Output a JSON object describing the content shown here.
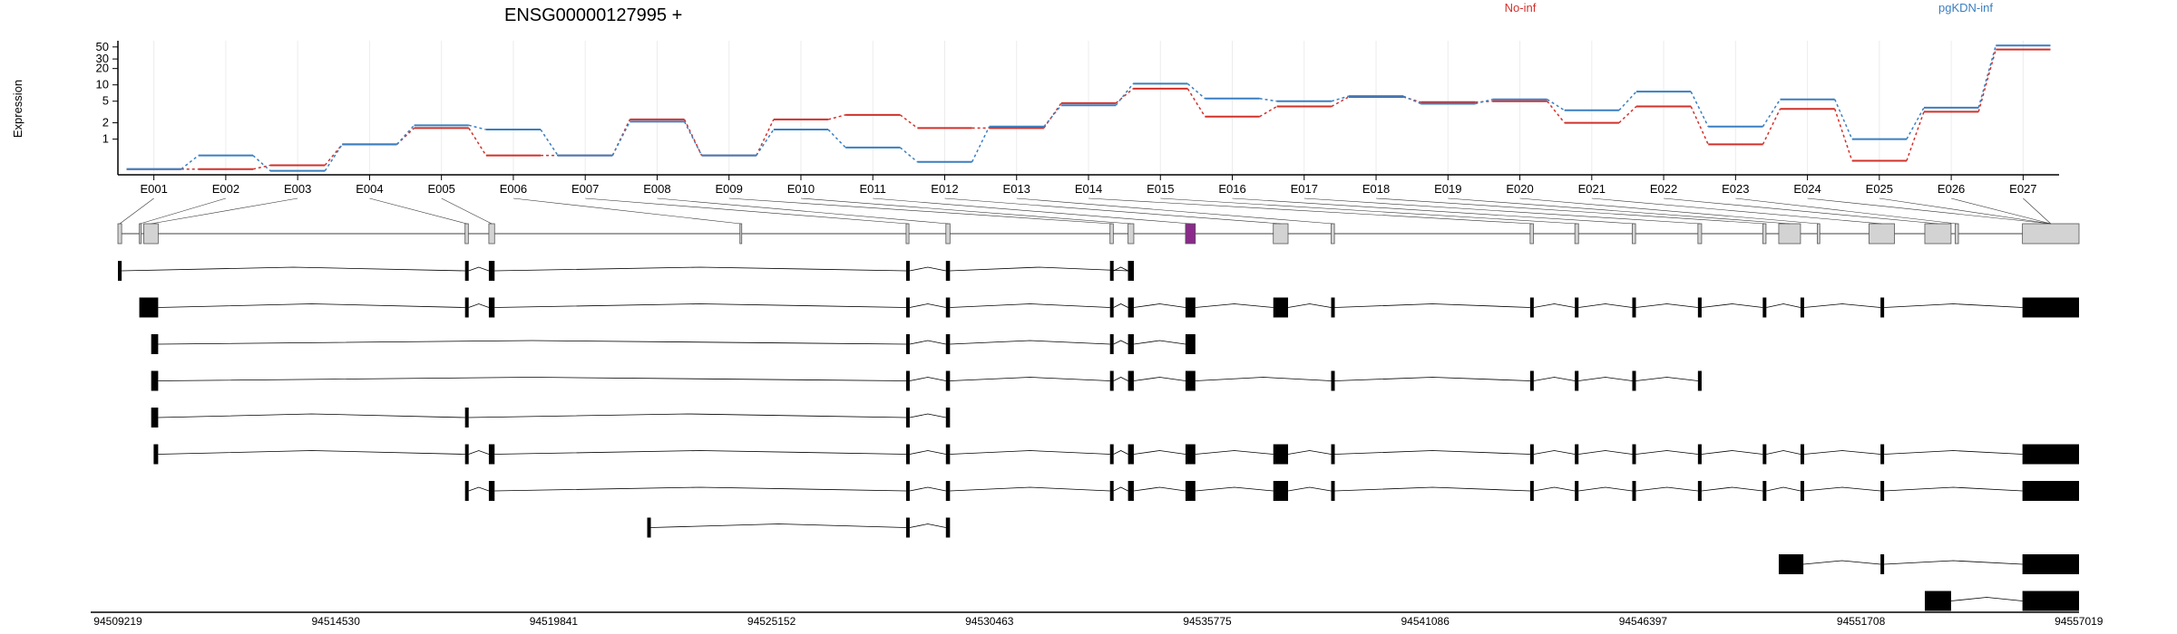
{
  "chart_data": {
    "type": "line",
    "title": "ENSG00000127995 +",
    "ylabel": "Expression",
    "y_scale": "log",
    "y_ticks": [
      "1",
      "2",
      "5",
      "10",
      "20",
      "30",
      "50"
    ],
    "y_tick_values": [
      1,
      2,
      5,
      10,
      20,
      30,
      50
    ],
    "ylim": [
      0.22,
      65
    ],
    "grid": true,
    "legend_placement": "top",
    "categories": [
      "E001",
      "E002",
      "E003",
      "E004",
      "E005",
      "E006",
      "E007",
      "E008",
      "E009",
      "E010",
      "E011",
      "E012",
      "E013",
      "E014",
      "E015",
      "E016",
      "E017",
      "E018",
      "E019",
      "E020",
      "E021",
      "E022",
      "E023",
      "E024",
      "E025",
      "E026",
      "E027"
    ],
    "series": [
      {
        "name": "No-inf",
        "color": "#d1312b",
        "values": [
          0.28,
          0.28,
          0.33,
          0.8,
          1.6,
          0.5,
          0.5,
          2.3,
          0.5,
          2.3,
          2.8,
          1.6,
          1.6,
          4.6,
          8.5,
          2.6,
          4.0,
          6.0,
          4.8,
          5.0,
          2.0,
          4.0,
          0.8,
          3.6,
          0.4,
          3.2,
          45
        ]
      },
      {
        "name": "pgKDN-inf",
        "color": "#3a7fc1",
        "values": [
          0.28,
          0.5,
          0.26,
          0.8,
          1.8,
          1.5,
          0.5,
          2.1,
          0.5,
          1.5,
          0.7,
          0.38,
          1.7,
          4.2,
          10.5,
          5.6,
          5.0,
          6.2,
          4.5,
          5.4,
          3.4,
          7.5,
          1.7,
          5.4,
          1.0,
          3.8,
          53
        ]
      }
    ],
    "exon_highlight": "E011",
    "genomic_coordinates": [
      "94509219",
      "94514530",
      "94519841",
      "94525152",
      "94530463",
      "94535775",
      "94541086",
      "94546397",
      "94551708",
      "94557019"
    ],
    "coordinate_range": [
      94509219,
      94557019
    ],
    "exons_genomic": [
      [
        94509219,
        94509310
      ],
      [
        94509740,
        94509780
      ],
      [
        94509850,
        94510200
      ],
      [
        94517680,
        94517760
      ],
      [
        94518260,
        94518400
      ],
      [
        94524380,
        94524420
      ],
      [
        94528430,
        94528500
      ],
      [
        94529400,
        94529500
      ],
      [
        94533400,
        94533480
      ],
      [
        94533840,
        94533980
      ],
      [
        94535240,
        94535480
      ],
      [
        94537380,
        94537740
      ],
      [
        94538790,
        94538870
      ],
      [
        94543640,
        94543720
      ],
      [
        94544730,
        94544820
      ],
      [
        94546130,
        94546210
      ],
      [
        94547730,
        94547820
      ],
      [
        94549310,
        94549390
      ],
      [
        94549700,
        94550230
      ],
      [
        94550640,
        94550700
      ],
      [
        94551900,
        94552520
      ],
      [
        94553260,
        94553900
      ],
      [
        94554000,
        94554080
      ],
      [
        94555640,
        94557019
      ]
    ],
    "transcripts": [
      [
        [
          94509219,
          94509310
        ],
        [
          94517680,
          94517760
        ],
        [
          94518260,
          94518400
        ],
        [
          94528430,
          94528500
        ],
        [
          94529400,
          94529500
        ],
        [
          94533840,
          94533980
        ],
        [
          94533400,
          94533480
        ],
        [
          94533840,
          94533980
        ]
      ],
      [
        [
          94509740,
          94510200
        ],
        [
          94517680,
          94517760
        ],
        [
          94518260,
          94518400
        ],
        [
          94528430,
          94528500
        ],
        [
          94529400,
          94529500
        ],
        [
          94533400,
          94533480
        ],
        [
          94533840,
          94533980
        ],
        [
          94535240,
          94535480
        ],
        [
          94537380,
          94537740
        ],
        [
          94538790,
          94538870
        ],
        [
          94543640,
          94543720
        ],
        [
          94544730,
          94544820
        ],
        [
          94546130,
          94546210
        ],
        [
          94547730,
          94547820
        ],
        [
          94549310,
          94549390
        ],
        [
          94550230,
          94550300
        ],
        [
          94552180,
          94552260
        ],
        [
          94555640,
          94557019
        ]
      ],
      [
        [
          94510030,
          94510200
        ],
        [
          94528430,
          94528500
        ],
        [
          94529400,
          94529500
        ],
        [
          94533400,
          94533480
        ],
        [
          94533840,
          94533980
        ],
        [
          94535240,
          94535480
        ]
      ],
      [
        [
          94510030,
          94510200
        ],
        [
          94528430,
          94528500
        ],
        [
          94529400,
          94529500
        ],
        [
          94533400,
          94533480
        ],
        [
          94533840,
          94533980
        ],
        [
          94535240,
          94535480
        ],
        [
          94538790,
          94538870
        ],
        [
          94543640,
          94543720
        ],
        [
          94544730,
          94544820
        ],
        [
          94546130,
          94546210
        ],
        [
          94547730,
          94547820
        ]
      ],
      [
        [
          94510030,
          94510200
        ],
        [
          94517680,
          94517760
        ],
        [
          94528430,
          94528500
        ],
        [
          94529400,
          94529500
        ]
      ],
      [
        [
          94510090,
          94510200
        ],
        [
          94517680,
          94517760
        ],
        [
          94518260,
          94518400
        ],
        [
          94528430,
          94528500
        ],
        [
          94529400,
          94529500
        ],
        [
          94533400,
          94533480
        ],
        [
          94533840,
          94533980
        ],
        [
          94535240,
          94535480
        ],
        [
          94537380,
          94537740
        ],
        [
          94538790,
          94538870
        ],
        [
          94543640,
          94543720
        ],
        [
          94544730,
          94544820
        ],
        [
          94546130,
          94546210
        ],
        [
          94547730,
          94547820
        ],
        [
          94549310,
          94549390
        ],
        [
          94550230,
          94550300
        ],
        [
          94552180,
          94552260
        ],
        [
          94555640,
          94557019
        ]
      ],
      [
        [
          94517680,
          94517760
        ],
        [
          94518260,
          94518400
        ],
        [
          94528430,
          94528500
        ],
        [
          94529400,
          94529500
        ],
        [
          94533400,
          94533480
        ],
        [
          94533840,
          94533980
        ],
        [
          94535240,
          94535480
        ],
        [
          94537380,
          94537740
        ],
        [
          94538790,
          94538870
        ],
        [
          94543640,
          94543720
        ],
        [
          94544730,
          94544820
        ],
        [
          94546130,
          94546210
        ],
        [
          94547730,
          94547820
        ],
        [
          94549310,
          94549390
        ],
        [
          94550230,
          94550300
        ],
        [
          94552180,
          94552260
        ],
        [
          94555640,
          94557019
        ]
      ],
      [
        [
          94522120,
          94522180
        ],
        [
          94528430,
          94528500
        ],
        [
          94529400,
          94529500
        ]
      ],
      [
        [
          94549700,
          94550300
        ],
        [
          94552180,
          94552260
        ],
        [
          94555640,
          94557019
        ]
      ],
      [
        [
          94553260,
          94553900
        ],
        [
          94555640,
          94557019
        ]
      ]
    ]
  }
}
